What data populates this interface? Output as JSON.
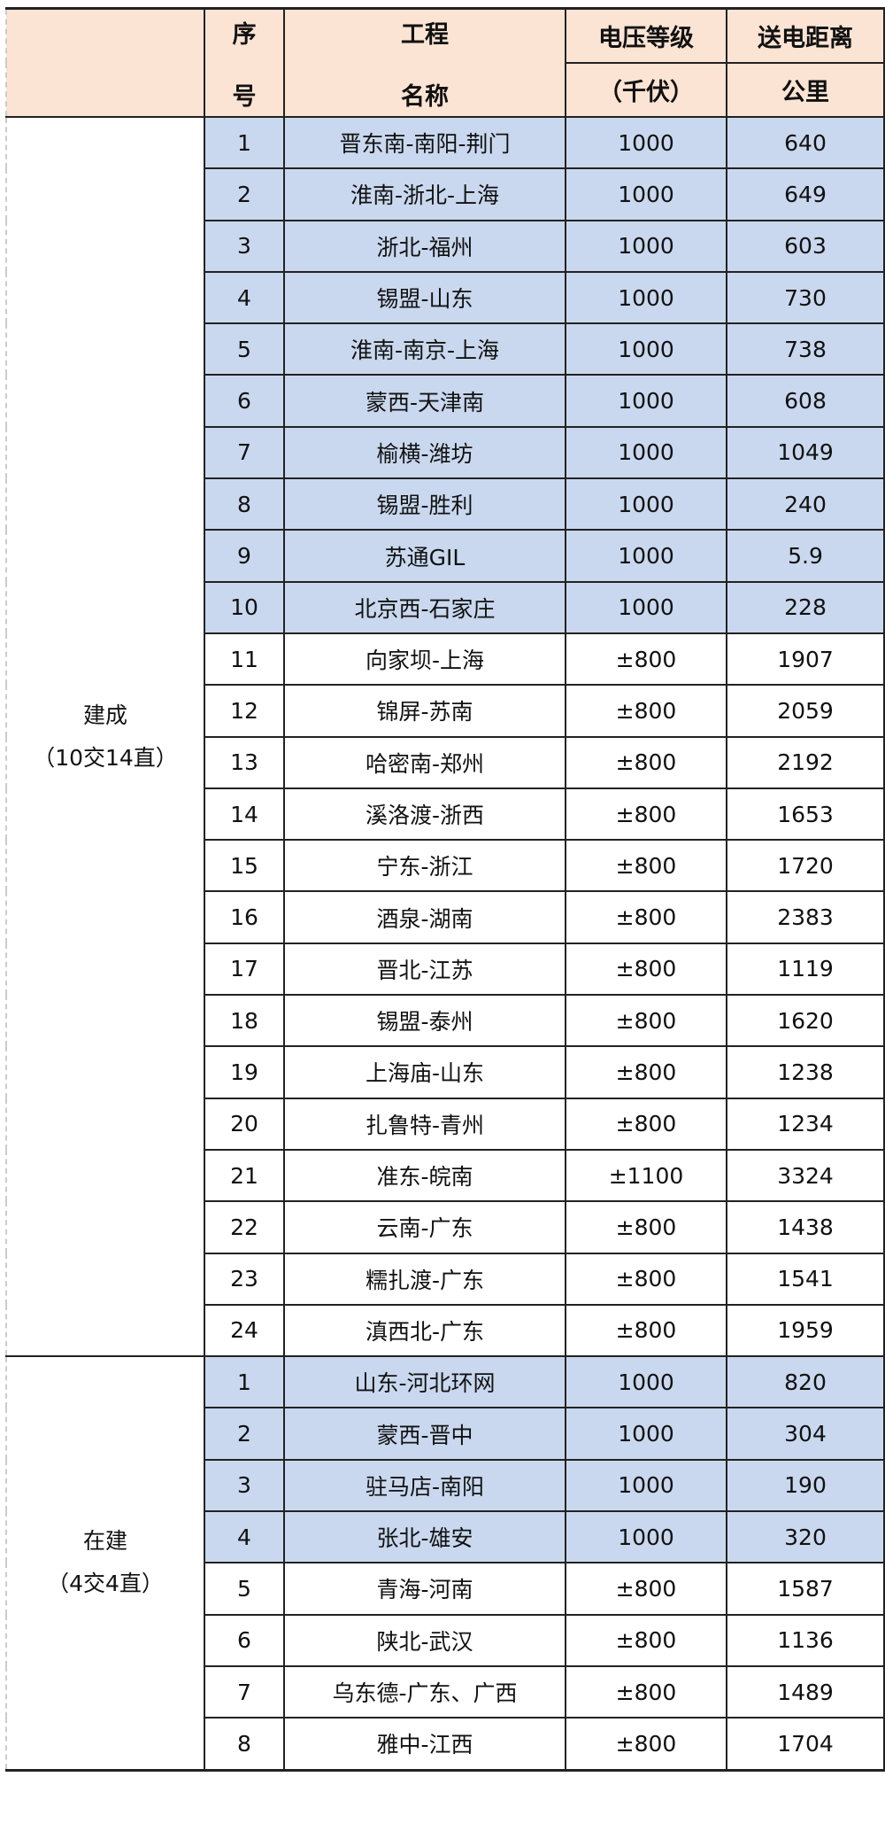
{
  "header": {
    "seq_line1": "序",
    "seq_line2": "号",
    "name_line1": "工程",
    "name_line2": "名称",
    "voltage_line1": "电压等级",
    "voltage_line2": "（千伏）",
    "distance_line1": "送电距离",
    "distance_line2": "公里"
  },
  "colors": {
    "header_bg": "#fce4d4",
    "ac_row_bg": "#c9d8ee"
  },
  "groups": [
    {
      "label": "建成",
      "sublabel": "（10交14直）",
      "rows": [
        {
          "no": "1",
          "name": "晋东南-南阳-荆门",
          "voltage": "1000",
          "distance": "640"
        },
        {
          "no": "2",
          "name": "淮南-浙北-上海",
          "voltage": "1000",
          "distance": "649"
        },
        {
          "no": "3",
          "name": "浙北-福州",
          "voltage": "1000",
          "distance": "603"
        },
        {
          "no": "4",
          "name": "锡盟-山东",
          "voltage": "1000",
          "distance": "730"
        },
        {
          "no": "5",
          "name": "淮南-南京-上海",
          "voltage": "1000",
          "distance": "738"
        },
        {
          "no": "6",
          "name": "蒙西-天津南",
          "voltage": "1000",
          "distance": "608"
        },
        {
          "no": "7",
          "name": "榆横-潍坊",
          "voltage": "1000",
          "distance": "1049"
        },
        {
          "no": "8",
          "name": "锡盟-胜利",
          "voltage": "1000",
          "distance": "240"
        },
        {
          "no": "9",
          "name": "苏通GIL",
          "voltage": "1000",
          "distance": "5.9"
        },
        {
          "no": "10",
          "name": "北京西-石家庄",
          "voltage": "1000",
          "distance": "228"
        },
        {
          "no": "11",
          "name": "向家坝-上海",
          "voltage": "±800",
          "distance": "1907"
        },
        {
          "no": "12",
          "name": "锦屏-苏南",
          "voltage": "±800",
          "distance": "2059"
        },
        {
          "no": "13",
          "name": "哈密南-郑州",
          "voltage": "±800",
          "distance": "2192"
        },
        {
          "no": "14",
          "name": "溪洛渡-浙西",
          "voltage": "±800",
          "distance": "1653"
        },
        {
          "no": "15",
          "name": "宁东-浙江",
          "voltage": "±800",
          "distance": "1720"
        },
        {
          "no": "16",
          "name": "酒泉-湖南",
          "voltage": "±800",
          "distance": "2383"
        },
        {
          "no": "17",
          "name": "晋北-江苏",
          "voltage": "±800",
          "distance": "1119"
        },
        {
          "no": "18",
          "name": "锡盟-泰州",
          "voltage": "±800",
          "distance": "1620"
        },
        {
          "no": "19",
          "name": "上海庙-山东",
          "voltage": "±800",
          "distance": "1238"
        },
        {
          "no": "20",
          "name": "扎鲁特-青州",
          "voltage": "±800",
          "distance": "1234"
        },
        {
          "no": "21",
          "name": "准东-皖南",
          "voltage": "±1100",
          "distance": "3324"
        },
        {
          "no": "22",
          "name": "云南-广东",
          "voltage": "±800",
          "distance": "1438"
        },
        {
          "no": "23",
          "name": "糯扎渡-广东",
          "voltage": "±800",
          "distance": "1541"
        },
        {
          "no": "24",
          "name": "滇西北-广东",
          "voltage": "±800",
          "distance": "1959"
        }
      ]
    },
    {
      "label": "在建",
      "sublabel": "（4交4直）",
      "rows": [
        {
          "no": "1",
          "name": "山东-河北环网",
          "voltage": "1000",
          "distance": "820"
        },
        {
          "no": "2",
          "name": "蒙西-晋中",
          "voltage": "1000",
          "distance": "304"
        },
        {
          "no": "3",
          "name": "驻马店-南阳",
          "voltage": "1000",
          "distance": "190"
        },
        {
          "no": "4",
          "name": "张北-雄安",
          "voltage": "1000",
          "distance": "320"
        },
        {
          "no": "5",
          "name": "青海-河南",
          "voltage": "±800",
          "distance": "1587"
        },
        {
          "no": "6",
          "name": "陕北-武汉",
          "voltage": "±800",
          "distance": "1136"
        },
        {
          "no": "7",
          "name": "乌东德-广东、广西",
          "voltage": "±800",
          "distance": "1489"
        },
        {
          "no": "8",
          "name": "雅中-江西",
          "voltage": "±800",
          "distance": "1704"
        }
      ]
    }
  ]
}
